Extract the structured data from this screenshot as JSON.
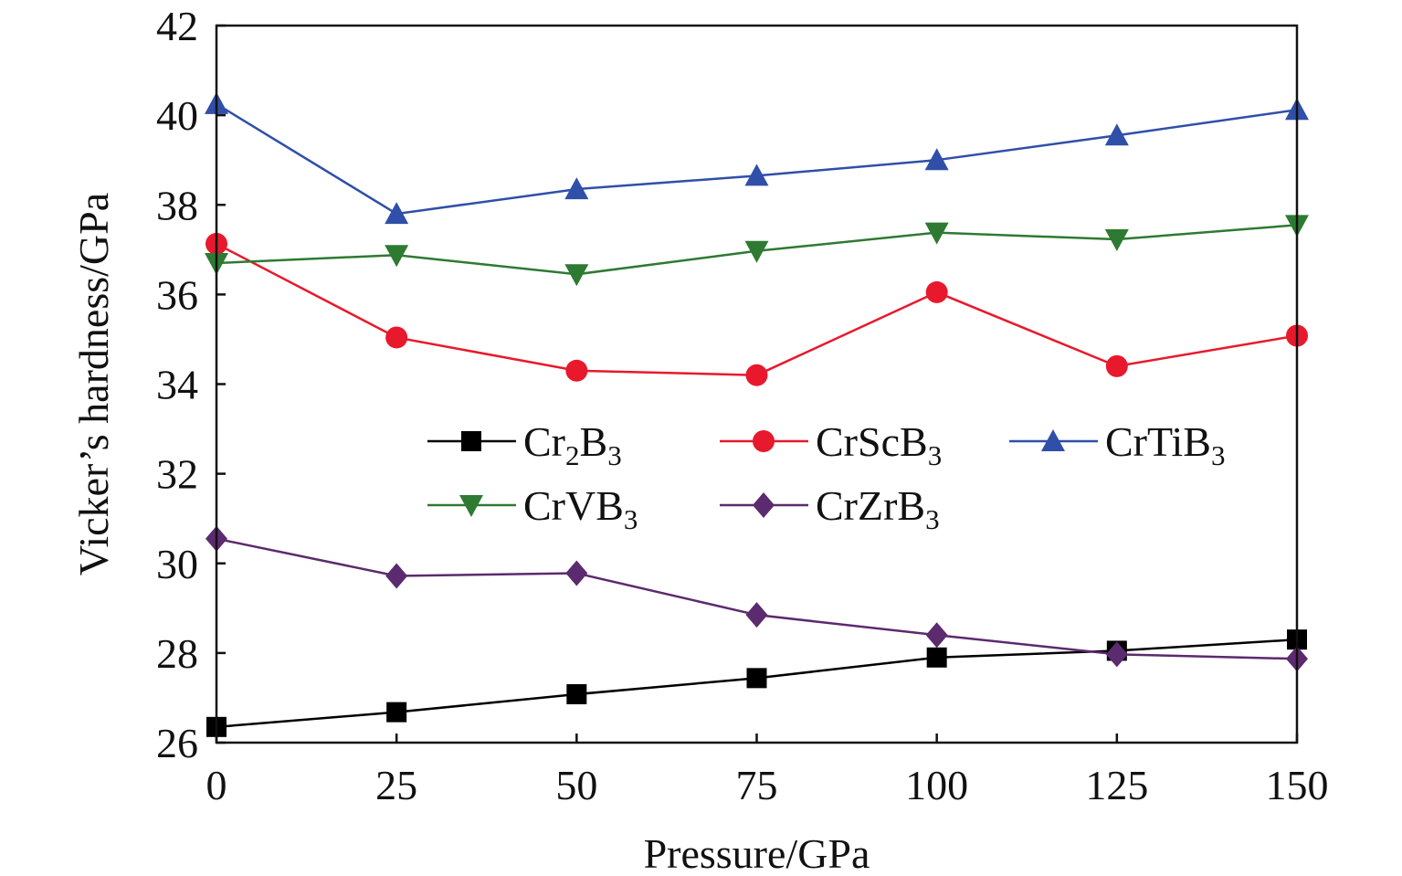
{
  "chart_data": {
    "type": "line",
    "xlabel": "Pressure/GPa",
    "ylabel": "Vicker’s hardness/GPa",
    "xlim": [
      0,
      150
    ],
    "ylim": [
      26,
      42
    ],
    "xticks": [
      0,
      25,
      50,
      75,
      100,
      125,
      150
    ],
    "yticks": [
      26,
      28,
      30,
      32,
      34,
      36,
      38,
      40,
      42
    ],
    "grid": false,
    "legend_position": "center",
    "x": [
      0,
      25,
      50,
      75,
      100,
      125,
      150
    ],
    "series": [
      {
        "name": "Cr2B3",
        "label_main": "Cr",
        "label_sub1": "2",
        "label_mid": "B",
        "label_sub2": "3",
        "color": "#000000",
        "marker": "square",
        "values": [
          26.35,
          26.68,
          27.08,
          27.44,
          27.9,
          28.05,
          28.3
        ]
      },
      {
        "name": "CrScB3",
        "label_main": "CrScB",
        "label_sub2": "3",
        "color": "#e8192c",
        "marker": "circle",
        "values": [
          37.13,
          35.04,
          34.3,
          34.2,
          36.05,
          34.4,
          35.08
        ]
      },
      {
        "name": "CrTiB3",
        "label_main": "CrTiB",
        "label_sub2": "3",
        "color": "#2f4fa8",
        "marker": "triangle-up",
        "values": [
          40.25,
          37.8,
          38.35,
          38.65,
          39.0,
          39.55,
          40.12
        ]
      },
      {
        "name": "CrVB3",
        "label_main": "CrVB",
        "label_sub2": "3",
        "color": "#2e7a32",
        "marker": "triangle-down",
        "values": [
          36.7,
          36.88,
          36.45,
          36.97,
          37.38,
          37.23,
          37.55
        ]
      },
      {
        "name": "CrZrB3",
        "label_main": "CrZrB",
        "label_sub2": "3",
        "color": "#5c2a6e",
        "marker": "diamond",
        "values": [
          30.55,
          29.72,
          29.78,
          28.85,
          28.4,
          27.97,
          27.87
        ]
      }
    ]
  }
}
